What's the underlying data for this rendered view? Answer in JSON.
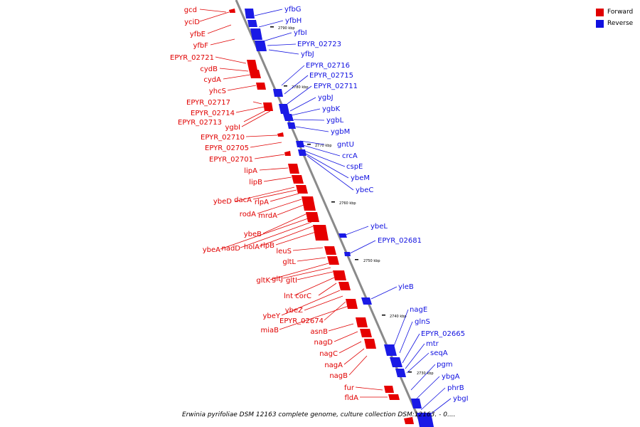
{
  "legend": [
    {
      "label": "Forward",
      "color": "#e00000"
    },
    {
      "label": "Reverse",
      "color": "#1010e0"
    }
  ],
  "caption": "Erwinia pyrifoliae DSM 12163 complete genome, culture collection DSM:12163. - 0....",
  "ticks": [
    "2790 kbp",
    "2780 kbp",
    "2770 kbp",
    "2760 kbp",
    "2750 kbp",
    "2740 kbp",
    "2730 kbp"
  ],
  "forward_genes": [
    "gcd",
    "yciD",
    "yfbE",
    "yfbF",
    "EPYR_02721",
    "cydB",
    "cydA",
    "yhcS",
    "EPYR_02717",
    "EPYR_02714",
    "EPYR_02713",
    "ygbI",
    "EPYR_02710",
    "EPYR_02705",
    "EPYR_02701",
    "lipA",
    "lipB",
    "ybeD",
    "dacA",
    "rlpA",
    "rodA",
    "mrdA",
    "ybeB",
    "ybeA",
    "nadD",
    "holA",
    "rlpB",
    "leuS",
    "gltL",
    "gltK",
    "gltJ",
    "gltI",
    "lnt",
    "corC",
    "ybeY",
    "ybeZ",
    "EPYR_02674",
    "miaB",
    "asnB",
    "nagD",
    "nagC",
    "nagA",
    "nagB",
    "fur",
    "fldA"
  ],
  "reverse_genes": [
    "yfbG",
    "yfbH",
    "yfbI",
    "EPYR_02723",
    "yfbJ",
    "EPYR_02716",
    "EPYR_02715",
    "EPYR_02711",
    "ygbJ",
    "ygbK",
    "ygbL",
    "ygbM",
    "gntU",
    "crcA",
    "cspE",
    "ybeM",
    "ybeC",
    "ybeL",
    "EPYR_02681",
    "yleB",
    "nagE",
    "glnS",
    "EPYR_02665",
    "mtr",
    "seqA",
    "pgm",
    "ybgA",
    "phrB",
    "ybgI"
  ],
  "colors": {
    "forward": "#e00000",
    "reverse": "#1010e0",
    "axis": "#888888"
  }
}
